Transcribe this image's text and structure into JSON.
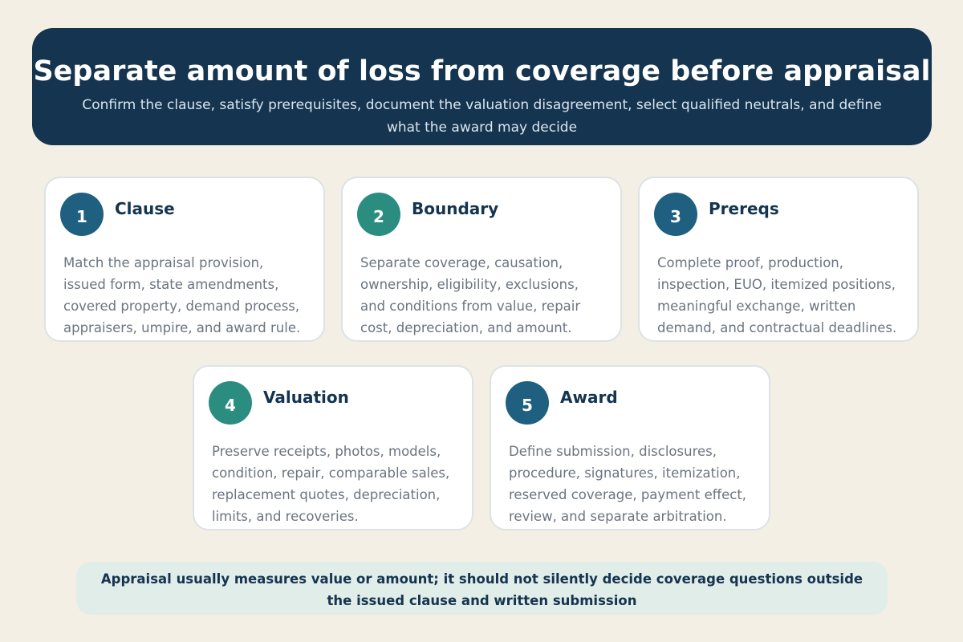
{
  "header": {
    "title": "Separate amount of loss from coverage before appraisal",
    "subtitle": "Confirm the clause, satisfy prerequisites, document the valuation disagreement, select qualified neutrals, and define what the award may decide"
  },
  "cards": [
    {
      "number": "1",
      "title": "Clause",
      "text": "Match the appraisal provision, issued form, state amendments, covered property, demand process, appraisers, umpire, and award rule."
    },
    {
      "number": "2",
      "title": "Boundary",
      "text": "Separate coverage, causation, ownership, eligibility, exclusions, and conditions from value, repair cost, depreciation, and amount."
    },
    {
      "number": "3",
      "title": "Prereqs",
      "text": "Complete proof, production, inspection, EUO, itemized positions, meaningful exchange, written demand, and contractual deadlines."
    },
    {
      "number": "4",
      "title": "Valuation",
      "text": "Preserve receipts, photos, models, condition, repair, comparable sales, replacement quotes, depreciation, limits, and recoveries."
    },
    {
      "number": "5",
      "title": "Award",
      "text": "Define submission, disclosures, procedure, signatures, itemization, reserved coverage, payment effect, review, and separate arbitration."
    }
  ],
  "footer": {
    "note": "Appraisal usually measures value or amount; it should not silently decide coverage questions outside the issued clause and written submission"
  }
}
